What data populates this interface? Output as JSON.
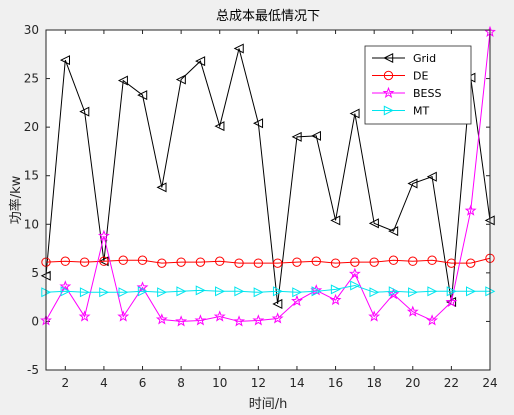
{
  "chart_data": {
    "type": "line",
    "title": "总成本最低情况下",
    "xlabel": "时间/h",
    "ylabel": "功率/kw",
    "xlim": [
      1,
      24
    ],
    "ylim": [
      -5,
      30
    ],
    "xticks": [
      2,
      4,
      6,
      8,
      10,
      12,
      14,
      16,
      18,
      20,
      22,
      24
    ],
    "yticks": [
      -5,
      0,
      5,
      10,
      15,
      20,
      25,
      30
    ],
    "grid": false,
    "legend_position": "top-right",
    "x": [
      1,
      2,
      3,
      4,
      5,
      6,
      7,
      8,
      9,
      10,
      11,
      12,
      13,
      14,
      15,
      16,
      17,
      18,
      19,
      20,
      21,
      22,
      23,
      24
    ],
    "series": [
      {
        "name": "Grid",
        "color": "#000000",
        "marker": "triangle-left",
        "values": [
          4.7,
          26.9,
          21.6,
          6.2,
          24.8,
          23.3,
          13.8,
          24.9,
          26.8,
          20.1,
          28.1,
          20.4,
          1.8,
          19.0,
          19.1,
          10.4,
          21.4,
          10.1,
          9.3,
          14.2,
          14.9,
          2.0,
          25.1,
          10.4
        ]
      },
      {
        "name": "DE",
        "color": "#ff0000",
        "marker": "circle",
        "values": [
          6.1,
          6.2,
          6.1,
          6.2,
          6.3,
          6.3,
          6.0,
          6.1,
          6.1,
          6.2,
          6.0,
          6.0,
          6.0,
          6.1,
          6.2,
          6.0,
          6.1,
          6.1,
          6.3,
          6.2,
          6.3,
          6.0,
          6.0,
          6.5
        ]
      },
      {
        "name": "BESS",
        "color": "#ff00ff",
        "marker": "star",
        "values": [
          0.1,
          3.6,
          0.5,
          8.8,
          0.5,
          3.5,
          0.2,
          0.0,
          0.1,
          0.5,
          0.0,
          0.1,
          0.3,
          2.1,
          3.2,
          2.2,
          4.9,
          0.5,
          2.8,
          1.0,
          0.1,
          2.0,
          11.4,
          29.8
        ]
      },
      {
        "name": "MT",
        "color": "#00e5ee",
        "marker": "triangle-right",
        "values": [
          3.0,
          3.1,
          3.0,
          3.0,
          3.0,
          3.1,
          3.0,
          3.1,
          3.2,
          3.1,
          3.1,
          3.0,
          3.1,
          3.0,
          3.1,
          3.3,
          3.7,
          3.0,
          3.1,
          3.0,
          3.1,
          3.1,
          3.1,
          3.1
        ]
      }
    ]
  }
}
